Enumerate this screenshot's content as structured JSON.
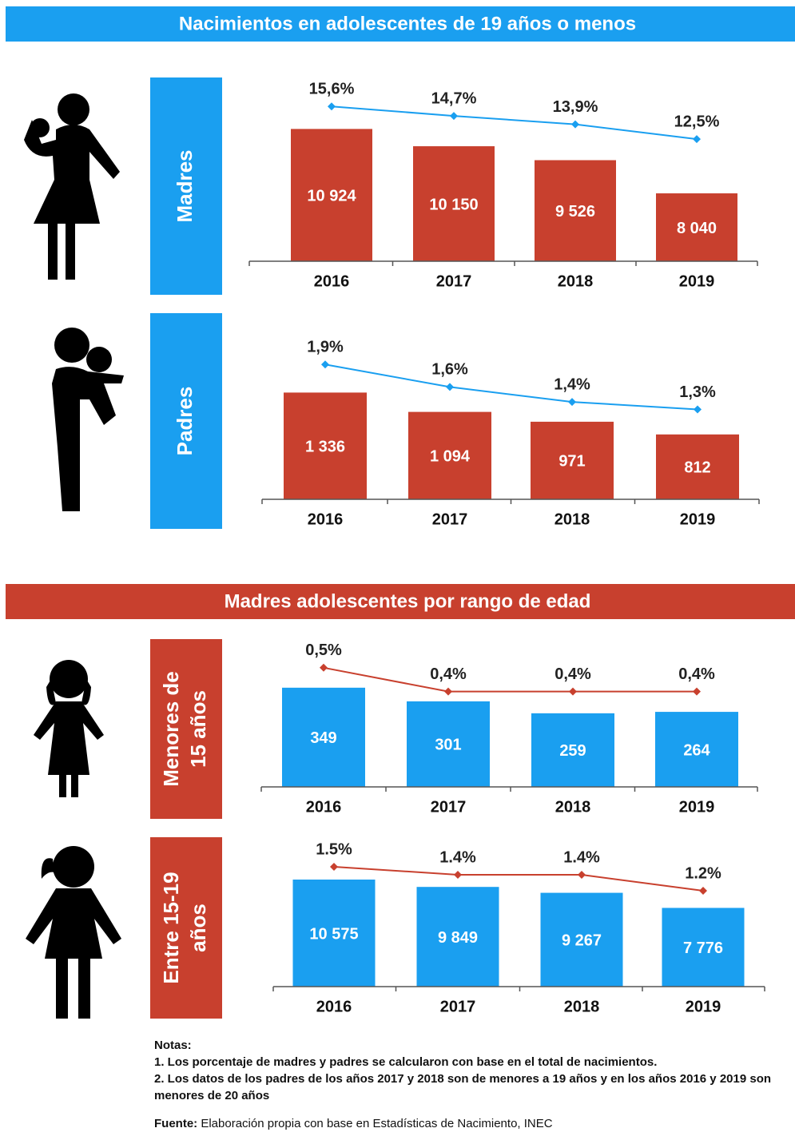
{
  "sections": [
    {
      "title": "Nacimientos en adolescentes de 19 años o menos",
      "color": "#1a9ff0"
    },
    {
      "title": "Madres adolescentes por rango de edad",
      "color": "#c8402e"
    }
  ],
  "chart_data": [
    {
      "type": "bar",
      "label_lines": [
        "Madres"
      ],
      "label_color": "#1a9ff0",
      "categories": [
        "2016",
        "2017",
        "2018",
        "2019"
      ],
      "ylim": [
        5000,
        13300
      ],
      "y2lim": [
        0.9,
        18.5
      ],
      "series": [
        {
          "color": "#c8402e",
          "values": [
            10924,
            10150,
            9526,
            8040
          ],
          "value_labels": [
            "10 924",
            "10 150",
            "9 526",
            "8 040"
          ]
        },
        {
          "type": "line",
          "axis": "y2",
          "color": "#1a9ff0",
          "values": [
            15.6,
            14.7,
            13.9,
            12.5
          ],
          "value_labels": [
            "15,6%",
            "14,7%",
            "13,9%",
            "12,5%"
          ]
        }
      ]
    },
    {
      "type": "bar",
      "label_lines": [
        "Padres"
      ],
      "label_color": "#1a9ff0",
      "categories": [
        "2016",
        "2017",
        "2018",
        "2019"
      ],
      "ylim": [
        0,
        2250
      ],
      "y2lim": [
        0.1,
        2.5
      ],
      "series": [
        {
          "color": "#c8402e",
          "values": [
            1336,
            1094,
            971,
            812
          ],
          "value_labels": [
            "1 336",
            "1 094",
            "971",
            "812"
          ]
        },
        {
          "type": "line",
          "axis": "y2",
          "color": "#1a9ff0",
          "values": [
            1.9,
            1.6,
            1.4,
            1.3
          ],
          "value_labels": [
            "1,9%",
            "1,6%",
            "1,4%",
            "1,3%"
          ]
        }
      ]
    },
    {
      "type": "bar",
      "label_lines": [
        "Menores de",
        "15 años"
      ],
      "label_color": "#c8402e",
      "categories": [
        "2016",
        "2017",
        "2018",
        "2019"
      ],
      "ylim": [
        0,
        520
      ],
      "y2lim": [
        0,
        0.62
      ],
      "series": [
        {
          "color": "#1a9ff0",
          "values": [
            349,
            301,
            259,
            264
          ]
        },
        {
          "type": "line",
          "axis": "y2",
          "color": "#c8402e",
          "values": [
            0.5,
            0.4,
            0.4,
            0.4
          ],
          "value_labels": [
            "0,5%",
            "0,4%",
            "0,4%",
            "0,4%"
          ]
        }
      ]
    },
    {
      "type": "bar",
      "label_lines": [
        "Entre 15-19",
        "años"
      ],
      "label_color": "#c8402e",
      "categories": [
        "2016",
        "2017",
        "2018",
        "2019"
      ],
      "ylim": [
        0,
        14600
      ],
      "y2lim": [
        0,
        1.85
      ],
      "series": [
        {
          "color": "#1a9ff0",
          "values": [
            10575,
            9849,
            9267,
            7776
          ],
          "value_labels": [
            "10 575",
            "9 849",
            "9 267",
            "7 776"
          ]
        },
        {
          "type": "line",
          "axis": "y2",
          "color": "#c8402e",
          "values": [
            1.5,
            1.4,
            1.4,
            1.2
          ],
          "value_labels": [
            "1.5%",
            "1.4%",
            "1.4%",
            "1.2%"
          ]
        }
      ]
    }
  ],
  "notes": {
    "heading": "Notas:",
    "items": [
      "1. Los porcentaje de madres y padres se calcularon con base en el total de nacimientos.",
      "2. Los datos de los padres de los años 2017 y 2018 son de menores a 19 años y en los años 2016 y 2019 son menores de 20 años"
    ],
    "source_label": "Fuente:",
    "source": "Elaboración propia con base en Estadísticas de Nacimiento, INEC"
  }
}
